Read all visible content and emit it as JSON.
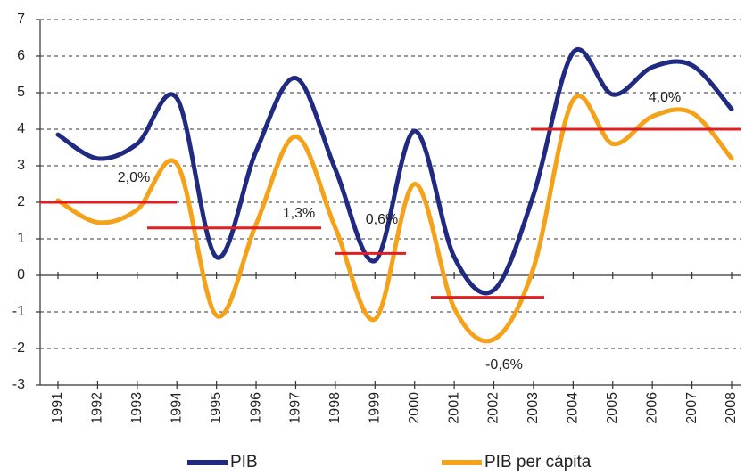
{
  "chart_data": {
    "type": "line",
    "categories": [
      "1991",
      "1992",
      "1993",
      "1994",
      "1995",
      "1996",
      "1997",
      "1998",
      "1999",
      "2000",
      "2001",
      "2002",
      "2003",
      "2004",
      "2005",
      "2006",
      "2007",
      "2008"
    ],
    "series": [
      {
        "name": "PIB",
        "color": "#1f2a80",
        "values": [
          3.85,
          3.2,
          3.6,
          4.85,
          0.5,
          3.4,
          5.4,
          2.9,
          0.4,
          3.95,
          0.5,
          -0.4,
          2.2,
          6.1,
          4.95,
          5.7,
          5.75,
          4.55
        ]
      },
      {
        "name": "PIB per cápita",
        "color": "#f5a21b",
        "values": [
          2.05,
          1.45,
          1.8,
          3.05,
          -1.1,
          1.4,
          3.8,
          1.3,
          -1.2,
          2.5,
          -0.9,
          -1.75,
          0.2,
          4.8,
          3.6,
          4.35,
          4.45,
          3.2
        ]
      }
    ],
    "averages": {
      "color": "#e02020",
      "values": [
        2.0,
        1.3,
        0.6,
        -0.6,
        4.0
      ],
      "value_labels": [
        "2,0%",
        "1,3%",
        "0,6%",
        "-0,6%",
        "4,0%"
      ]
    },
    "ylim": [
      -3,
      7
    ],
    "yticks": [
      -3,
      -2,
      -1,
      0,
      1,
      2,
      3,
      4,
      5,
      6,
      7
    ],
    "grid": true
  }
}
